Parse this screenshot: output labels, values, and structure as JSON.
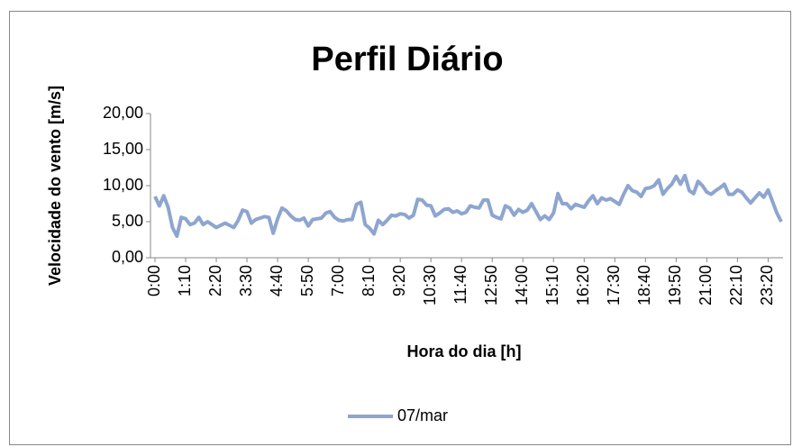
{
  "chart_data": {
    "type": "line",
    "title": "Perfil Diário",
    "xlabel": "Hora do dia [h]",
    "ylabel": "Velocidade do vento [m/s]",
    "categories": [
      "0:00",
      null,
      null,
      null,
      null,
      null,
      null,
      "1:10",
      null,
      null,
      null,
      null,
      null,
      null,
      "2:20",
      null,
      null,
      null,
      null,
      null,
      null,
      "3:30",
      null,
      null,
      null,
      null,
      null,
      null,
      "4:40",
      null,
      null,
      null,
      null,
      null,
      null,
      "5:50",
      null,
      null,
      null,
      null,
      null,
      null,
      "7:00",
      null,
      null,
      null,
      null,
      null,
      null,
      "8:10",
      null,
      null,
      null,
      null,
      null,
      null,
      "9:20",
      null,
      null,
      null,
      null,
      null,
      null,
      "10:30",
      null,
      null,
      null,
      null,
      null,
      null,
      "11:40",
      null,
      null,
      null,
      null,
      null,
      null,
      "12:50",
      null,
      null,
      null,
      null,
      null,
      null,
      "14:00",
      null,
      null,
      null,
      null,
      null,
      null,
      "15:10",
      null,
      null,
      null,
      null,
      null,
      null,
      "16:20",
      null,
      null,
      null,
      null,
      null,
      null,
      "17:30",
      null,
      null,
      null,
      null,
      null,
      null,
      "18:40",
      null,
      null,
      null,
      null,
      null,
      null,
      "19:50",
      null,
      null,
      null,
      null,
      null,
      null,
      "21:00",
      null,
      null,
      null,
      null,
      null,
      null,
      "22:10",
      null,
      null,
      null,
      null,
      null,
      null,
      "23:20",
      null,
      null,
      null
    ],
    "series": [
      {
        "name": "07/mar",
        "color": "#8ea5cf",
        "values": [
          8.5,
          7.2,
          8.6,
          7.0,
          4.2,
          3.0,
          5.6,
          5.4,
          4.6,
          4.8,
          5.6,
          4.6,
          5.0,
          4.6,
          4.2,
          4.5,
          4.8,
          4.5,
          4.2,
          5.2,
          6.6,
          6.4,
          4.8,
          5.3,
          5.5,
          5.7,
          5.6,
          3.4,
          5.4,
          6.9,
          6.5,
          5.8,
          5.3,
          5.2,
          5.5,
          4.4,
          5.3,
          5.4,
          5.5,
          6.2,
          6.4,
          5.6,
          5.2,
          5.1,
          5.3,
          5.3,
          7.4,
          7.7,
          4.6,
          4.1,
          3.3,
          5.2,
          4.6,
          5.2,
          5.9,
          5.8,
          6.1,
          6.0,
          5.5,
          5.9,
          8.1,
          8.0,
          7.3,
          7.2,
          5.8,
          6.2,
          6.7,
          6.8,
          6.3,
          6.5,
          6.1,
          6.3,
          7.2,
          7.0,
          6.9,
          8.0,
          8.0,
          5.9,
          5.6,
          5.4,
          7.2,
          6.9,
          5.9,
          6.7,
          6.3,
          6.6,
          7.5,
          6.4,
          5.3,
          5.8,
          5.3,
          6.2,
          8.9,
          7.5,
          7.5,
          6.8,
          7.4,
          7.2,
          7.0,
          7.9,
          8.6,
          7.5,
          8.3,
          8.0,
          8.2,
          7.8,
          7.4,
          8.8,
          10.0,
          9.3,
          9.1,
          8.5,
          9.6,
          9.7,
          10.0,
          10.8,
          8.8,
          9.6,
          10.2,
          11.3,
          10.2,
          11.4,
          9.3,
          8.9,
          10.6,
          10.0,
          9.1,
          8.8,
          9.3,
          9.7,
          10.2,
          8.8,
          8.8,
          9.4,
          9.1,
          8.3,
          7.6,
          8.3,
          9.0,
          8.4,
          9.4,
          7.8,
          6.2,
          5.0
        ]
      }
    ],
    "ylim": [
      0,
      20
    ],
    "yticks": [
      {
        "value": 0,
        "label": "0,00"
      },
      {
        "value": 5,
        "label": "5,00"
      },
      {
        "value": 10,
        "label": "10,00"
      },
      {
        "value": 15,
        "label": "15,00"
      },
      {
        "value": 20,
        "label": "20,00"
      }
    ]
  }
}
